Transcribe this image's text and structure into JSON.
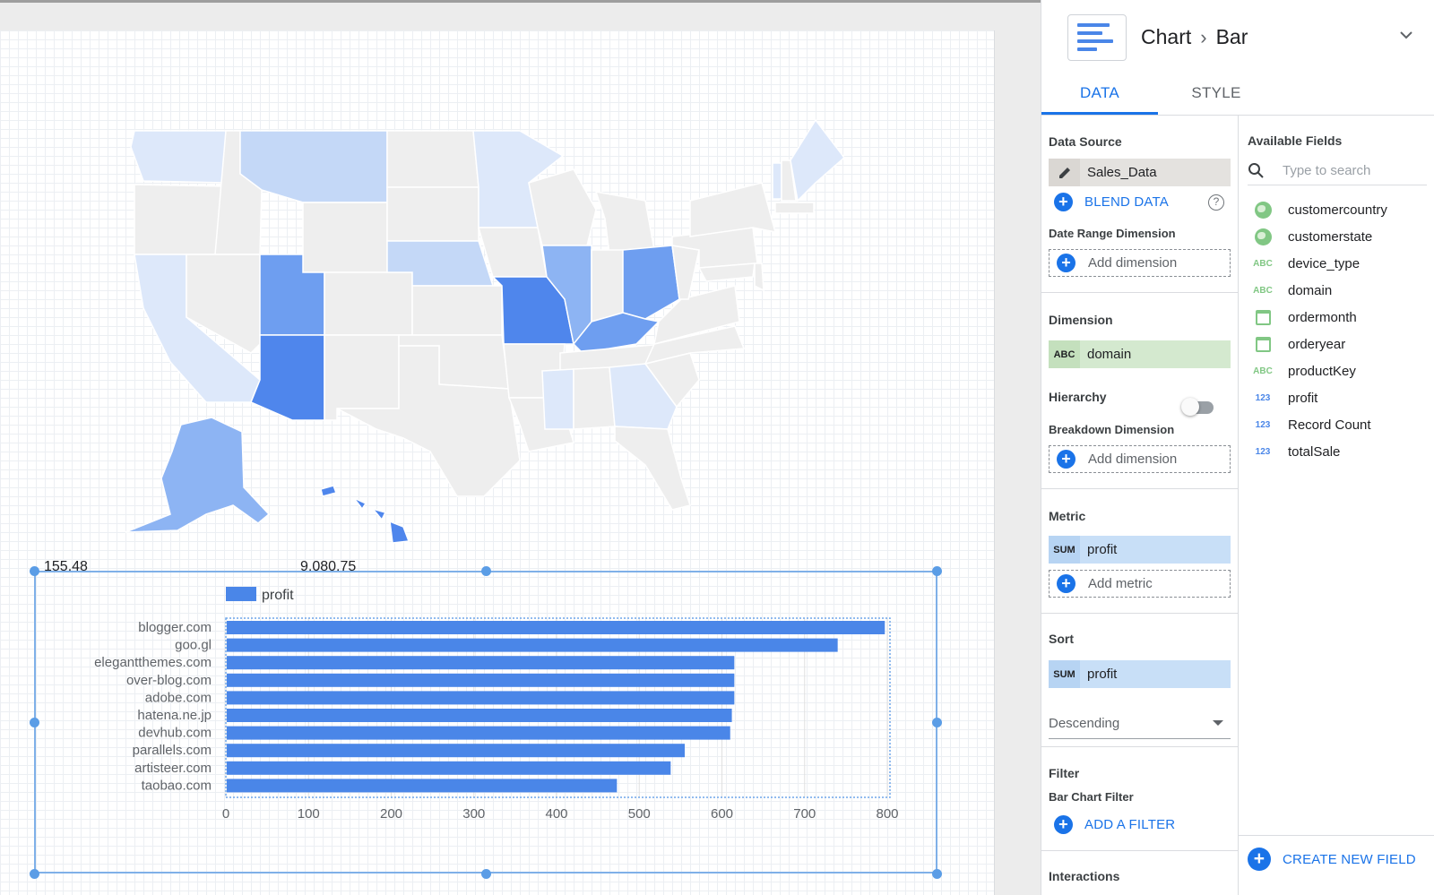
{
  "panel": {
    "breadcrumb": {
      "root": "Chart",
      "current": "Bar"
    },
    "tabs": [
      {
        "label": "DATA",
        "active": true
      },
      {
        "label": "STYLE",
        "active": false
      }
    ],
    "data_source": {
      "title": "Data Source",
      "value": "Sales_Data",
      "blend_label": "BLEND DATA",
      "help": "?"
    },
    "date_range": {
      "title": "Date Range Dimension",
      "add_label": "Add dimension"
    },
    "dimension": {
      "title": "Dimension",
      "tag": "ABC",
      "value": "domain"
    },
    "hierarchy": {
      "title": "Hierarchy",
      "enabled": false
    },
    "breakdown": {
      "title": "Breakdown Dimension",
      "add_label": "Add dimension"
    },
    "metric": {
      "title": "Metric",
      "tag": "SUM",
      "value": "profit",
      "add_label": "Add metric"
    },
    "sort": {
      "title": "Sort",
      "tag": "SUM",
      "value": "profit",
      "order": "Descending"
    },
    "filter": {
      "title": "Filter",
      "subtitle": "Bar Chart Filter",
      "add_label": "ADD A FILTER"
    },
    "interactions": {
      "title": "Interactions"
    },
    "available_fields": {
      "title": "Available Fields",
      "search_placeholder": "Type to search",
      "fields": [
        {
          "name": "customercountry",
          "type": "geo"
        },
        {
          "name": "customerstate",
          "type": "geo"
        },
        {
          "name": "device_type",
          "type": "text",
          "tag": "ABC"
        },
        {
          "name": "domain",
          "type": "text",
          "tag": "ABC"
        },
        {
          "name": "ordermonth",
          "type": "date"
        },
        {
          "name": "orderyear",
          "type": "date"
        },
        {
          "name": "productKey",
          "type": "text",
          "tag": "ABC"
        },
        {
          "name": "profit",
          "type": "number",
          "tag": "123"
        },
        {
          "name": "Record Count",
          "type": "number",
          "tag": "123"
        },
        {
          "name": "totalSale",
          "type": "number",
          "tag": "123"
        }
      ],
      "create_label": "CREATE NEW FIELD"
    }
  },
  "map": {
    "legend_min": "155.48",
    "legend_max": "9,080.75",
    "colors": {
      "empty": "#eeeeee",
      "light": "#dde8fa",
      "mid": "#c4d8f7",
      "strong": "#8db4f3",
      "darker": "#6e9ef0",
      "darkest": "#4f86ec",
      "border": "#ffffff"
    }
  },
  "chart_data": {
    "type": "bar",
    "orientation": "horizontal",
    "categories": [
      "blogger.com",
      "goo.gl",
      "elegantthemes.com",
      "over-blog.com",
      "adobe.com",
      "hatena.ne.jp",
      "devhub.com",
      "parallels.com",
      "artisteer.com",
      "taobao.com"
    ],
    "series": [
      {
        "name": "profit",
        "values": [
          797,
          740,
          615,
          615,
          615,
          612,
          610,
          555,
          538,
          473
        ]
      }
    ],
    "xlim": [
      0,
      800
    ],
    "xticks": [
      0,
      100,
      200,
      300,
      400,
      500,
      600,
      700,
      800
    ],
    "grid": true,
    "legend_position": "top-left",
    "color": "#4a86e8"
  }
}
